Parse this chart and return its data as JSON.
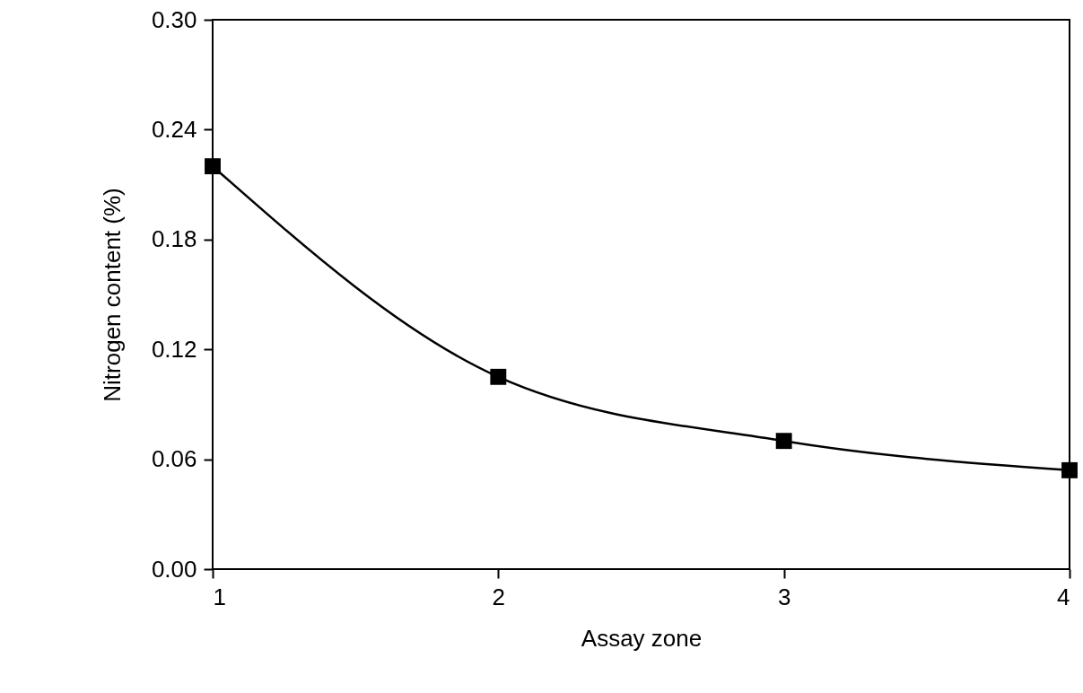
{
  "chart_data": {
    "type": "line",
    "xlabel": "Assay zone",
    "ylabel": "Nitrogen content (%)",
    "x": [
      1,
      2,
      3,
      4
    ],
    "series": [
      {
        "color": "#000000",
        "values": [
          0.22,
          0.105,
          0.07,
          0.054
        ]
      }
    ],
    "xlim": [
      1,
      4
    ],
    "xticks": [
      1,
      2,
      3,
      4
    ],
    "ylim": [
      0,
      0.3
    ],
    "yticks": [
      {
        "value": 0,
        "label": "0.00"
      },
      {
        "value": 0.06,
        "label": "0.06"
      },
      {
        "value": 0.12,
        "label": "0.12"
      },
      {
        "value": 0.18,
        "label": "0.18"
      },
      {
        "value": 0.24,
        "label": "0.24"
      },
      {
        "value": 0.3,
        "label": "0.30"
      }
    ],
    "grid": false,
    "marker": "square",
    "line_style": "solid"
  }
}
